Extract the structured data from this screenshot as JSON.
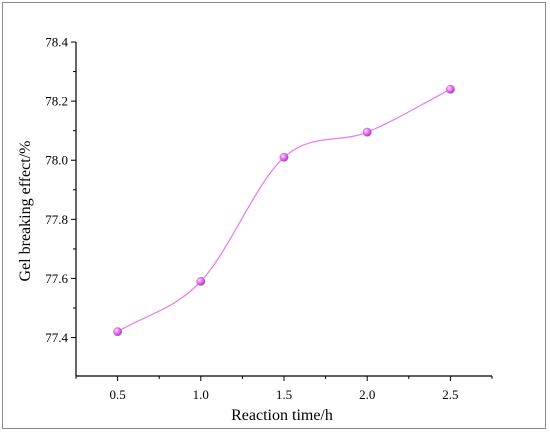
{
  "chart_data": {
    "type": "line",
    "title": "",
    "xlabel": "Reaction time/h",
    "ylabel": "Gel breaking effect/%",
    "x": [
      0.5,
      1.0,
      1.5,
      2.0,
      2.5
    ],
    "xtick_labels": [
      "0.5",
      "1.0",
      "1.5",
      "2.0",
      "2.5"
    ],
    "xlim": [
      0.25,
      2.75
    ],
    "ytick_values": [
      77.4,
      77.6,
      77.8,
      78.0,
      78.2,
      78.4
    ],
    "ytick_labels": [
      "77.4",
      "77.6",
      "77.8",
      "78.0",
      "78.2",
      "78.4"
    ],
    "ylim": [
      77.27,
      78.4
    ],
    "series": [
      {
        "values": [
          77.42,
          77.59,
          78.01,
          78.095,
          78.24
        ],
        "color": "#e879f0",
        "marker": "sphere",
        "smooth": true
      }
    ],
    "grid": false,
    "legend": "none"
  }
}
